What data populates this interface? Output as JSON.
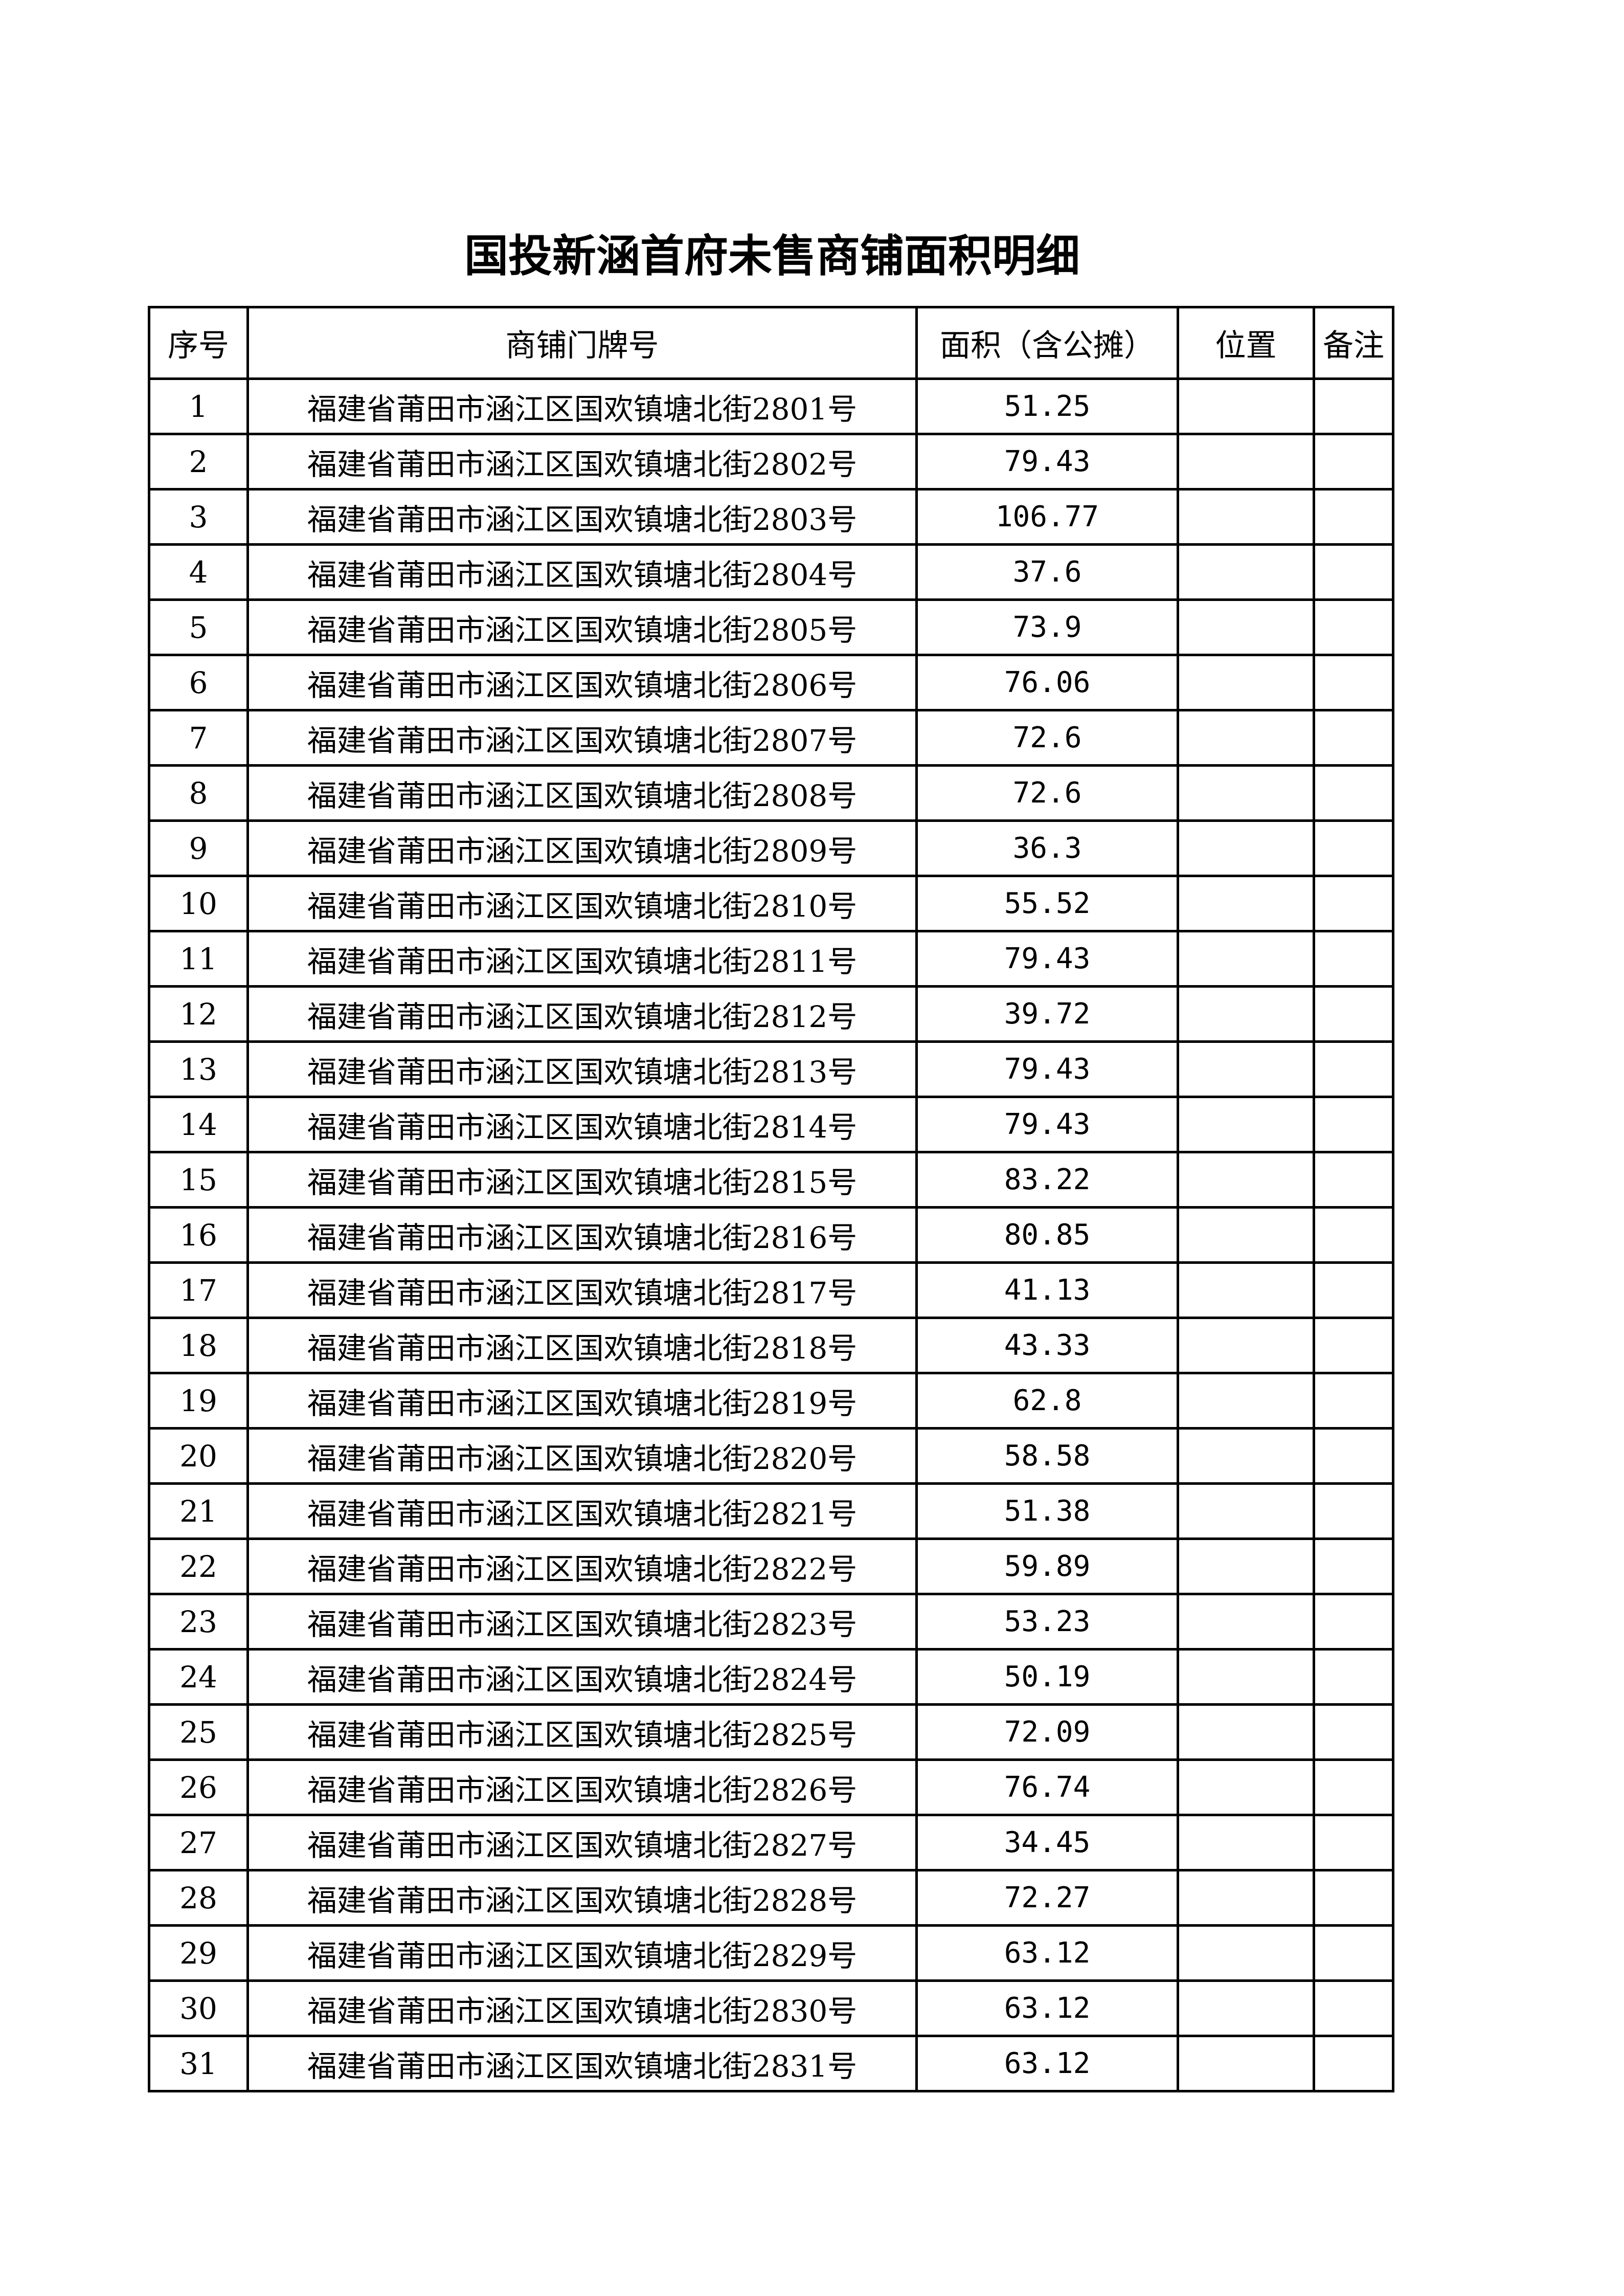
{
  "title": "国投新涵首府未售商铺面积明细",
  "table": {
    "headers": [
      "序号",
      "商铺门牌号",
      "面积（含公摊）",
      "位置",
      "备注"
    ],
    "rows": [
      {
        "no": "1",
        "address": "福建省莆田市涵江区国欢镇塘北街2801号",
        "area": "51.25",
        "location": "",
        "remark": ""
      },
      {
        "no": "2",
        "address": "福建省莆田市涵江区国欢镇塘北街2802号",
        "area": "79.43",
        "location": "",
        "remark": ""
      },
      {
        "no": "3",
        "address": "福建省莆田市涵江区国欢镇塘北街2803号",
        "area": "106.77",
        "location": "",
        "remark": ""
      },
      {
        "no": "4",
        "address": "福建省莆田市涵江区国欢镇塘北街2804号",
        "area": "37.6",
        "location": "",
        "remark": ""
      },
      {
        "no": "5",
        "address": "福建省莆田市涵江区国欢镇塘北街2805号",
        "area": "73.9",
        "location": "",
        "remark": ""
      },
      {
        "no": "6",
        "address": "福建省莆田市涵江区国欢镇塘北街2806号",
        "area": "76.06",
        "location": "",
        "remark": ""
      },
      {
        "no": "7",
        "address": "福建省莆田市涵江区国欢镇塘北街2807号",
        "area": "72.6",
        "location": "",
        "remark": ""
      },
      {
        "no": "8",
        "address": "福建省莆田市涵江区国欢镇塘北街2808号",
        "area": "72.6",
        "location": "",
        "remark": ""
      },
      {
        "no": "9",
        "address": "福建省莆田市涵江区国欢镇塘北街2809号",
        "area": "36.3",
        "location": "",
        "remark": ""
      },
      {
        "no": "10",
        "address": "福建省莆田市涵江区国欢镇塘北街2810号",
        "area": "55.52",
        "location": "",
        "remark": ""
      },
      {
        "no": "11",
        "address": "福建省莆田市涵江区国欢镇塘北街2811号",
        "area": "79.43",
        "location": "",
        "remark": ""
      },
      {
        "no": "12",
        "address": "福建省莆田市涵江区国欢镇塘北街2812号",
        "area": "39.72",
        "location": "",
        "remark": ""
      },
      {
        "no": "13",
        "address": "福建省莆田市涵江区国欢镇塘北街2813号",
        "area": "79.43",
        "location": "",
        "remark": ""
      },
      {
        "no": "14",
        "address": "福建省莆田市涵江区国欢镇塘北街2814号",
        "area": "79.43",
        "location": "",
        "remark": ""
      },
      {
        "no": "15",
        "address": "福建省莆田市涵江区国欢镇塘北街2815号",
        "area": "83.22",
        "location": "",
        "remark": ""
      },
      {
        "no": "16",
        "address": "福建省莆田市涵江区国欢镇塘北街2816号",
        "area": "80.85",
        "location": "",
        "remark": ""
      },
      {
        "no": "17",
        "address": "福建省莆田市涵江区国欢镇塘北街2817号",
        "area": "41.13",
        "location": "",
        "remark": ""
      },
      {
        "no": "18",
        "address": "福建省莆田市涵江区国欢镇塘北街2818号",
        "area": "43.33",
        "location": "",
        "remark": ""
      },
      {
        "no": "19",
        "address": "福建省莆田市涵江区国欢镇塘北街2819号",
        "area": "62.8",
        "location": "",
        "remark": ""
      },
      {
        "no": "20",
        "address": "福建省莆田市涵江区国欢镇塘北街2820号",
        "area": "58.58",
        "location": "",
        "remark": ""
      },
      {
        "no": "21",
        "address": "福建省莆田市涵江区国欢镇塘北街2821号",
        "area": "51.38",
        "location": "",
        "remark": ""
      },
      {
        "no": "22",
        "address": "福建省莆田市涵江区国欢镇塘北街2822号",
        "area": "59.89",
        "location": "",
        "remark": ""
      },
      {
        "no": "23",
        "address": "福建省莆田市涵江区国欢镇塘北街2823号",
        "area": "53.23",
        "location": "",
        "remark": ""
      },
      {
        "no": "24",
        "address": "福建省莆田市涵江区国欢镇塘北街2824号",
        "area": "50.19",
        "location": "",
        "remark": ""
      },
      {
        "no": "25",
        "address": "福建省莆田市涵江区国欢镇塘北街2825号",
        "area": "72.09",
        "location": "",
        "remark": ""
      },
      {
        "no": "26",
        "address": "福建省莆田市涵江区国欢镇塘北街2826号",
        "area": "76.74",
        "location": "",
        "remark": ""
      },
      {
        "no": "27",
        "address": "福建省莆田市涵江区国欢镇塘北街2827号",
        "area": "34.45",
        "location": "",
        "remark": ""
      },
      {
        "no": "28",
        "address": "福建省莆田市涵江区国欢镇塘北街2828号",
        "area": "72.27",
        "location": "",
        "remark": ""
      },
      {
        "no": "29",
        "address": "福建省莆田市涵江区国欢镇塘北街2829号",
        "area": "63.12",
        "location": "",
        "remark": ""
      },
      {
        "no": "30",
        "address": "福建省莆田市涵江区国欢镇塘北街2830号",
        "area": "63.12",
        "location": "",
        "remark": ""
      },
      {
        "no": "31",
        "address": "福建省莆田市涵江区国欢镇塘北街2831号",
        "area": "63.12",
        "location": "",
        "remark": ""
      }
    ]
  }
}
